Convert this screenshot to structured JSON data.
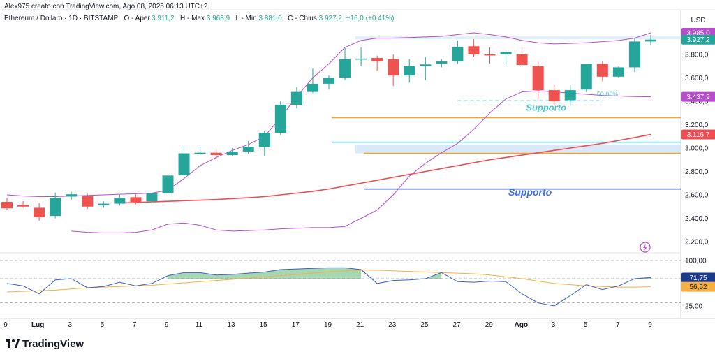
{
  "header": {
    "author_line": "Alex975 creato con TradingView.com, Ago 08, 2025 06:13 UTC+2",
    "symbol": "Ethereum / Dollaro · 1D · BITSTAMP",
    "open_label": "O - Aper.",
    "open": "3.911,2",
    "high_label": "H - Max.",
    "high": "3.968,9",
    "low_label": "L - Min.",
    "low": "3.881,0",
    "close_label": "C - Chius.",
    "close": "3.927,2",
    "change": "+16,0 (+0,41%)"
  },
  "brand": "TradingView",
  "axis": {
    "currency": "USD"
  },
  "colors": {
    "up": "#26a69a",
    "down": "#ef5350",
    "bollinger": "#b84ccf",
    "ma": "#f04c52",
    "support_orange": "#f5a623",
    "support_teal": "#4ec3c9",
    "support_navy": "#1c3a8c",
    "rsi": "#3b5fc7",
    "rsi_ma": "#f5b041"
  },
  "chart_data": {
    "type": "candlestick",
    "symbol": "Ethereum / Dollaro",
    "interval": "1D",
    "price_axis_ticks": [
      "2.200,0",
      "2.400,0",
      "2.600,0",
      "2.800,0",
      "3.000,0",
      "3.200,0",
      "3.400,0",
      "3.600,0",
      "3.800,0"
    ],
    "price_tags": [
      {
        "label": "3.985,0",
        "value": 3985,
        "color": "#b84ccf"
      },
      {
        "label": "3.927,2",
        "value": 3927.2,
        "color": "#26a69a"
      },
      {
        "label": "3.437,9",
        "value": 3437.9,
        "color": "#b84ccf"
      },
      {
        "label": "3.116,7",
        "value": 3116.7,
        "color": "#f04c52"
      }
    ],
    "x_ticks": [
      "9",
      "Lug",
      "3",
      "5",
      "7",
      "9",
      "11",
      "13",
      "15",
      "17",
      "19",
      "21",
      "23",
      "25",
      "27",
      "29",
      "Ago",
      "3",
      "5",
      "7",
      "9"
    ],
    "candles": [
      {
        "o": 2540,
        "h": 2575,
        "l": 2470,
        "c": 2485
      },
      {
        "o": 2515,
        "h": 2545,
        "l": 2490,
        "c": 2500
      },
      {
        "o": 2490,
        "h": 2530,
        "l": 2380,
        "c": 2410
      },
      {
        "o": 2420,
        "h": 2620,
        "l": 2400,
        "c": 2575
      },
      {
        "o": 2585,
        "h": 2625,
        "l": 2560,
        "c": 2605
      },
      {
        "o": 2590,
        "h": 2610,
        "l": 2480,
        "c": 2500
      },
      {
        "o": 2510,
        "h": 2545,
        "l": 2490,
        "c": 2525
      },
      {
        "o": 2525,
        "h": 2600,
        "l": 2510,
        "c": 2575
      },
      {
        "o": 2580,
        "h": 2605,
        "l": 2520,
        "c": 2540
      },
      {
        "o": 2545,
        "h": 2600,
        "l": 2520,
        "c": 2615
      },
      {
        "o": 2615,
        "h": 2780,
        "l": 2600,
        "c": 2765
      },
      {
        "o": 2770,
        "h": 3020,
        "l": 2760,
        "c": 2955
      },
      {
        "o": 2955,
        "h": 3010,
        "l": 2940,
        "c": 2960
      },
      {
        "o": 2960,
        "h": 2990,
        "l": 2900,
        "c": 2940
      },
      {
        "o": 2940,
        "h": 3000,
        "l": 2930,
        "c": 2970
      },
      {
        "o": 2970,
        "h": 3060,
        "l": 2950,
        "c": 3010
      },
      {
        "o": 3010,
        "h": 3150,
        "l": 2930,
        "c": 3130
      },
      {
        "o": 3130,
        "h": 3400,
        "l": 3110,
        "c": 3370
      },
      {
        "o": 3370,
        "h": 3520,
        "l": 3340,
        "c": 3480
      },
      {
        "o": 3480,
        "h": 3680,
        "l": 3470,
        "c": 3550
      },
      {
        "o": 3550,
        "h": 3620,
        "l": 3500,
        "c": 3600
      },
      {
        "o": 3600,
        "h": 3860,
        "l": 3580,
        "c": 3760
      },
      {
        "o": 3760,
        "h": 3860,
        "l": 3700,
        "c": 3765
      },
      {
        "o": 3770,
        "h": 3790,
        "l": 3660,
        "c": 3740
      },
      {
        "o": 3760,
        "h": 3800,
        "l": 3530,
        "c": 3620
      },
      {
        "o": 3620,
        "h": 3760,
        "l": 3560,
        "c": 3700
      },
      {
        "o": 3700,
        "h": 3780,
        "l": 3580,
        "c": 3715
      },
      {
        "o": 3720,
        "h": 3760,
        "l": 3690,
        "c": 3740
      },
      {
        "o": 3740,
        "h": 3920,
        "l": 3720,
        "c": 3865
      },
      {
        "o": 3870,
        "h": 3930,
        "l": 3780,
        "c": 3800
      },
      {
        "o": 3800,
        "h": 3860,
        "l": 3720,
        "c": 3795
      },
      {
        "o": 3800,
        "h": 3820,
        "l": 3710,
        "c": 3820
      },
      {
        "o": 3800,
        "h": 3860,
        "l": 3700,
        "c": 3710
      },
      {
        "o": 3700,
        "h": 3740,
        "l": 3420,
        "c": 3495
      },
      {
        "o": 3495,
        "h": 3540,
        "l": 3360,
        "c": 3400
      },
      {
        "o": 3410,
        "h": 3540,
        "l": 3360,
        "c": 3495
      },
      {
        "o": 3500,
        "h": 3720,
        "l": 3480,
        "c": 3720
      },
      {
        "o": 3720,
        "h": 3740,
        "l": 3570,
        "c": 3610
      },
      {
        "o": 3610,
        "h": 3700,
        "l": 3600,
        "c": 3690
      },
      {
        "o": 3690,
        "h": 3940,
        "l": 3650,
        "c": 3911
      },
      {
        "o": 3911,
        "h": 3969,
        "l": 3881,
        "c": 3927
      }
    ],
    "bollinger_upper": [
      2600,
      2590,
      2585,
      2585,
      2590,
      2595,
      2600,
      2605,
      2610,
      2615,
      2640,
      2740,
      2850,
      2920,
      2980,
      3030,
      3100,
      3260,
      3440,
      3600,
      3720,
      3860,
      3920,
      3940,
      3940,
      3945,
      3950,
      3955,
      3970,
      3985,
      3970,
      3950,
      3920,
      3900,
      3890,
      3895,
      3900,
      3910,
      3920,
      3940,
      3985
    ],
    "bollinger_lower": [
      2290,
      2280,
      2275,
      2275,
      2280,
      2300,
      2350,
      2360,
      2340,
      2300,
      2290,
      2295,
      2300,
      2310,
      2315,
      2320,
      2320,
      2330,
      2400,
      2470,
      2600,
      2760,
      2870,
      2960,
      3040,
      3160,
      3300,
      3420,
      3480,
      3490,
      3480,
      3470,
      3460,
      3450,
      3445,
      3440,
      3438
    ],
    "bollinger_lower_start_index": 4,
    "moving_average": [
      2530,
      2535,
      2540,
      2545,
      2550,
      2555,
      2560,
      2568,
      2576,
      2585,
      2600,
      2615,
      2630,
      2650,
      2675,
      2700,
      2725,
      2750,
      2775,
      2800,
      2825,
      2850,
      2875,
      2900,
      2920,
      2940,
      2960,
      2980,
      3000,
      3020,
      3040,
      3065,
      3090,
      3117
    ],
    "moving_average_start_index": 7,
    "horizontal_levels": [
      {
        "value": 3260,
        "color": "#f5a623",
        "from_index": 20
      },
      {
        "value": 3050,
        "color": "#4ec3c9",
        "from_index": 20
      },
      {
        "value": 2955,
        "color": "#f5a623",
        "from_index": 22
      },
      {
        "value": 2650,
        "color": "#1c3a8c",
        "from_index": 22
      }
    ],
    "bands": [
      {
        "from": 2955,
        "to": 3025,
        "from_index": 22,
        "color": "#cfe3f7"
      },
      {
        "from": 3930,
        "to": 3955,
        "from_index": 22,
        "color": "#dcebf8"
      }
    ],
    "fib_level": {
      "label": "50,00%",
      "value": 3405,
      "from_index": 28,
      "to_index": 37
    },
    "annotations": [
      {
        "text": "Supporto",
        "value": 3320,
        "index": 33.5,
        "color": "#4ec3c9",
        "size": 13
      },
      {
        "text": "Supporto",
        "value": 2595,
        "index": 32.5,
        "color": "#3d6fd6",
        "size": 14
      }
    ],
    "rsi_axis_ticks": [
      "100,00",
      "25,00"
    ],
    "rsi_tags": [
      {
        "label": "71,75",
        "value": 71.75,
        "color": "#1c3a8c"
      },
      {
        "label": "56,52",
        "value": 56.52,
        "color": "#f5b041"
      }
    ],
    "rsi": [
      62,
      58,
      45,
      68,
      70,
      55,
      57,
      64,
      58,
      62,
      75,
      80,
      80,
      76,
      77,
      79,
      81,
      85,
      86,
      87,
      88,
      88,
      85,
      62,
      67,
      68,
      70,
      80,
      65,
      64,
      66,
      65,
      45,
      30,
      25,
      42,
      60,
      52,
      58,
      70,
      72
    ],
    "rsi_ma": [
      48,
      49,
      50,
      51,
      53,
      55,
      56,
      57,
      58,
      59,
      61,
      63,
      65,
      67,
      69,
      71,
      73,
      75,
      77,
      79,
      81,
      83,
      84,
      84,
      83,
      82,
      81,
      80,
      79,
      78,
      76,
      73,
      70,
      66,
      62,
      60,
      58,
      57,
      56,
      56,
      56.5
    ]
  }
}
